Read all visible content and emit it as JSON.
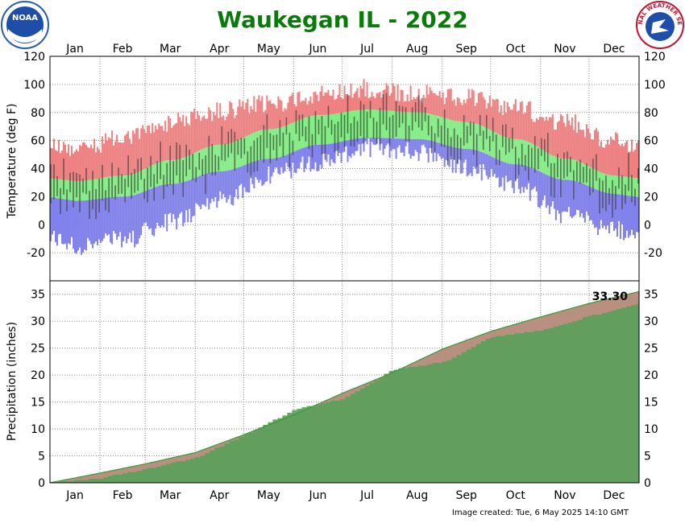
{
  "chart_data": [
    {
      "type": "bar",
      "subtype": "daily temperature range with normals band",
      "title": "Waukegan IL - 2022",
      "ylabel": "Temperature (deg F)",
      "ylim": [
        -40,
        120
      ],
      "yticks": [
        -20,
        0,
        20,
        40,
        60,
        80,
        100,
        120
      ],
      "months": [
        "Jan",
        "Feb",
        "Mar",
        "Apr",
        "May",
        "Jun",
        "Jul",
        "Aug",
        "Sep",
        "Oct",
        "Nov",
        "Dec"
      ],
      "grid": true,
      "colors": {
        "above_normal": "#f08080",
        "normal_band": "#80ee80",
        "below_normal": "#8080ee",
        "observed": "#444444"
      },
      "normal_high_monthly": [
        31,
        35,
        46,
        57,
        68,
        78,
        82,
        80,
        73,
        61,
        47,
        35
      ],
      "normal_low_monthly": [
        17,
        20,
        29,
        38,
        47,
        57,
        62,
        61,
        54,
        43,
        32,
        22
      ],
      "record_high_monthly": [
        62,
        68,
        80,
        88,
        93,
        100,
        104,
        100,
        97,
        90,
        80,
        66
      ],
      "record_low_monthly": [
        -22,
        -18,
        -5,
        10,
        28,
        38,
        48,
        45,
        34,
        20,
        0,
        -10
      ]
    },
    {
      "type": "area",
      "subtype": "cumulative precipitation",
      "ylabel": "Precipitation (inches)",
      "ylim": [
        0,
        37.5
      ],
      "yticks": [
        0,
        5,
        10,
        15,
        20,
        25,
        30,
        35
      ],
      "months": [
        "Jan",
        "Feb",
        "Mar",
        "Apr",
        "May",
        "Jun",
        "Jul",
        "Aug",
        "Sep",
        "Oct",
        "Nov",
        "Dec"
      ],
      "grid": true,
      "annotation": "33.30",
      "total": 33.3,
      "colors": {
        "observed": "#5aa05a",
        "normal": "#b89080",
        "normal_line": "#3a9a3a"
      },
      "observed_cumulative_month_end": [
        0.9,
        2.6,
        4.7,
        8.9,
        13.6,
        15.6,
        21.0,
        22.4,
        27.1,
        28.3,
        31.0,
        33.3
      ],
      "normal_cumulative_month_end": [
        1.8,
        3.5,
        5.6,
        8.9,
        12.6,
        16.6,
        20.4,
        24.8,
        28.1,
        30.8,
        33.3,
        35.5
      ]
    }
  ],
  "footer": "Image created: Tue, 6 May 2025 14:10 GMT",
  "logos": {
    "left": "noaa-logo",
    "right": "nws-logo",
    "left_text": "NOAA",
    "right_text": "NATIONAL WEATHER SERVICE"
  }
}
